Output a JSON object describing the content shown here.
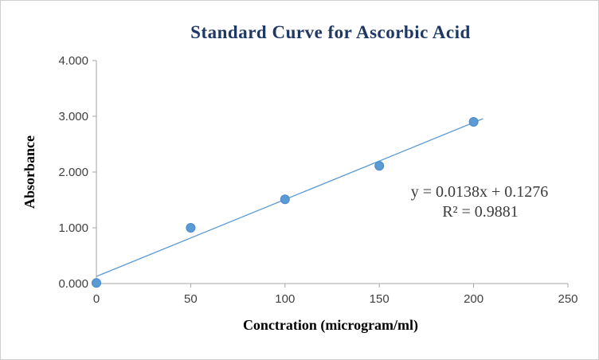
{
  "chart_data": {
    "type": "scatter",
    "title": "Standard Curve for Ascorbic Acid",
    "xlabel": "Conctration (microgram/ml)",
    "ylabel": "Absorbance",
    "x": [
      0,
      50,
      100,
      150,
      200
    ],
    "y": [
      0.01,
      1.0,
      1.51,
      2.11,
      2.9
    ],
    "xlim": [
      0,
      250
    ],
    "ylim": [
      0,
      4
    ],
    "x_ticks": [
      {
        "v": 0,
        "label": "0"
      },
      {
        "v": 50,
        "label": "50"
      },
      {
        "v": 100,
        "label": "100"
      },
      {
        "v": 150,
        "label": "150"
      },
      {
        "v": 200,
        "label": "200"
      },
      {
        "v": 250,
        "label": "250"
      }
    ],
    "y_ticks": [
      {
        "v": 0,
        "label": "0.000"
      },
      {
        "v": 1,
        "label": "1.000"
      },
      {
        "v": 2,
        "label": "2.000"
      },
      {
        "v": 3,
        "label": "3.000"
      },
      {
        "v": 4,
        "label": "4.000"
      }
    ],
    "grid": false,
    "legend": "none",
    "trendline": {
      "slope": 0.0138,
      "intercept": 0.1276,
      "x_start": 0,
      "x_end": 205,
      "equation": "y = 0.0138x + 0.1276",
      "r_squared": "R² = 0.9881"
    },
    "colors": {
      "point_fill": "#5B9BD5",
      "point_stroke": "#4A88C7",
      "trendline": "#5B9BD5",
      "axis": "#A6A6A6",
      "tick_text": "#404040",
      "title": "#1F3864",
      "axis_label": "#000000",
      "annotation": "#3b3b3b"
    }
  }
}
